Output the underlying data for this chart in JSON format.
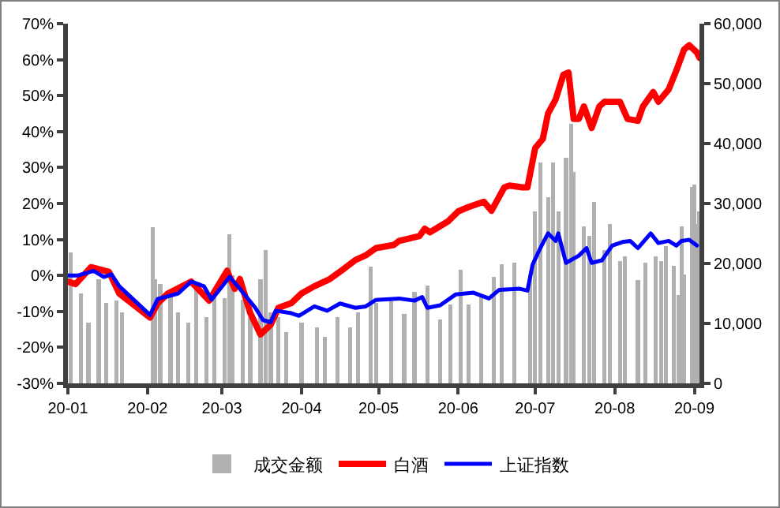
{
  "chart_data": {
    "type": "line",
    "legend": "bottom",
    "grid": false,
    "xlim": [
      "--01-01",
      "--09-03"
    ],
    "xticks": [
      {
        "value": "--01-01",
        "label": "20-01"
      },
      {
        "value": "--02-01",
        "label": "20-02"
      },
      {
        "value": "--03-01",
        "label": "20-03"
      },
      {
        "value": "--04-01",
        "label": "20-04"
      },
      {
        "value": "--05-01",
        "label": "20-05"
      },
      {
        "value": "--06-01",
        "label": "20-06"
      },
      {
        "value": "--07-01",
        "label": "20-07"
      },
      {
        "value": "--08-01",
        "label": "20-08"
      },
      {
        "value": "--09-01",
        "label": "20-09"
      }
    ],
    "ylim": [
      -30,
      70
    ],
    "yticks": [
      {
        "value": -30,
        "label": "-30%"
      },
      {
        "value": -20,
        "label": "-20%"
      },
      {
        "value": -10,
        "label": "-10%"
      },
      {
        "value": 0,
        "label": "0%"
      },
      {
        "value": 10,
        "label": "10%"
      },
      {
        "value": 20,
        "label": "20%"
      },
      {
        "value": 30,
        "label": "30%"
      },
      {
        "value": 40,
        "label": "40%"
      },
      {
        "value": 50,
        "label": "50%"
      },
      {
        "value": 60,
        "label": "60%"
      },
      {
        "value": 70,
        "label": "70%"
      }
    ],
    "y2lim": [
      0,
      60000
    ],
    "y2ticks": [
      0,
      {
        "value": 10000,
        "label": "10,000"
      },
      {
        "value": 20000,
        "label": "20,000"
      },
      {
        "value": 30000,
        "label": "30,000"
      },
      {
        "value": 40000,
        "label": "40,000"
      },
      {
        "value": 50000,
        "label": "50,000"
      },
      {
        "value": 60000,
        "label": "60,000"
      }
    ],
    "series": [
      {
        "name": "成交金额",
        "type": "bar",
        "axis": "y2",
        "color": "#b0b0b0",
        "x": [
          "--01-02",
          "--01-06",
          "--01-09",
          "--01-13",
          "--01-16",
          "--01-20",
          "--01-22",
          "--02-03",
          "--02-04",
          "--02-06",
          "--02-10",
          "--02-13",
          "--02-17",
          "--02-20",
          "--02-24",
          "--02-27",
          "--03-02",
          "--03-04",
          "--03-05",
          "--03-09",
          "--03-12",
          "--03-16",
          "--03-18",
          "--03-20",
          "--03-23",
          "--03-26",
          "--04-01",
          "--04-07",
          "--04-10",
          "--04-15",
          "--04-20",
          "--04-23",
          "--04-28",
          "--04-30",
          "--05-06",
          "--05-11",
          "--05-15",
          "--05-20",
          "--05-25",
          "--05-29",
          "--06-02",
          "--06-05",
          "--06-10",
          "--06-15",
          "--06-18",
          "--06-23",
          "--06-29",
          "--07-01",
          "--07-03",
          "--07-06",
          "--07-08",
          "--07-10",
          "--07-13",
          "--07-15",
          "--07-16",
          "--07-20",
          "--07-22",
          "--07-24",
          "--07-28",
          "--07-30",
          "--08-03",
          "--08-05",
          "--08-10",
          "--08-13",
          "--08-17",
          "--08-19",
          "--08-21",
          "--08-24",
          "--08-26",
          "--08-27",
          "--08-28",
          "--08-31",
          "--09-01",
          "--09-02",
          "--09-03"
        ],
        "values": [
          21900,
          15000,
          10100,
          17400,
          13400,
          13800,
          11800,
          26000,
          17400,
          16600,
          15000,
          11800,
          10100,
          15800,
          11000,
          15000,
          14200,
          24900,
          18000,
          14000,
          11000,
          17400,
          22300,
          11800,
          11000,
          8500,
          10100,
          9300,
          7700,
          11000,
          9300,
          11800,
          19500,
          13400,
          14000,
          11600,
          15200,
          16300,
          10700,
          13200,
          19000,
          13200,
          14400,
          17700,
          19900,
          20100,
          18100,
          28700,
          36800,
          31100,
          36800,
          28700,
          37600,
          43300,
          35200,
          26200,
          24600,
          30300,
          22300,
          26600,
          20400,
          21200,
          17300,
          20100,
          21200,
          20400,
          22900,
          19600,
          14700,
          26200,
          18100,
          32700,
          33100,
          26600,
          28700
        ]
      },
      {
        "name": "白酒",
        "color": "#ff0000",
        "x": [
          "--01-01",
          "--01-04",
          "--01-10",
          "--01-17",
          "--01-21",
          "--02-02",
          "--02-05",
          "--02-09",
          "--02-18",
          "--02-25",
          "--03-03",
          "--03-06",
          "--03-08",
          "--03-12",
          "--03-16",
          "--03-20",
          "--03-23",
          "--03-28",
          "--04-01",
          "--04-06",
          "--04-12",
          "--04-17",
          "--04-22",
          "--04-26",
          "--04-30",
          "--05-07",
          "--05-09",
          "--05-17",
          "--05-19",
          "--05-21",
          "--05-28",
          "--06-01",
          "--06-05",
          "--06-11",
          "--06-14",
          "--06-19",
          "--06-21",
          "--06-26",
          "--06-28",
          "--07-01",
          "--07-04",
          "--07-06",
          "--07-09",
          "--07-12",
          "--07-14",
          "--07-16",
          "--07-18",
          "--07-20",
          "--07-23",
          "--07-26",
          "--07-28",
          "--08-03",
          "--08-06",
          "--08-10",
          "--08-12",
          "--08-16",
          "--08-18",
          "--08-22",
          "--08-25",
          "--08-28",
          "--08-30",
          "--09-02",
          "--09-03"
        ],
        "values": [
          -1.7,
          -2.4,
          2.3,
          1,
          -5,
          -11.7,
          -7.7,
          -5,
          -1.7,
          -7,
          1.3,
          -3.7,
          -1,
          -10.4,
          -16.4,
          -13.7,
          -9,
          -7.7,
          -5,
          -3,
          -1,
          1.6,
          4.3,
          5.6,
          7.6,
          8.5,
          9.6,
          11,
          13,
          12,
          15,
          17.8,
          19,
          20.5,
          18,
          24.5,
          25,
          24.5,
          24.5,
          35.4,
          38,
          45,
          49,
          55.8,
          56.4,
          43.5,
          43.5,
          47,
          41,
          47,
          48.3,
          48.3,
          43.5,
          43,
          47,
          51,
          48.3,
          51.7,
          57,
          62.8,
          64,
          62,
          60.5
        ]
      },
      {
        "name": "上证指数",
        "color": "#0000ff",
        "x": [
          "--01-01",
          "--01-05",
          "--01-11",
          "--01-15",
          "--01-18",
          "--01-21",
          "--02-02",
          "--02-05",
          "--02-09",
          "--02-13",
          "--02-18",
          "--02-23",
          "--02-26",
          "--03-04",
          "--03-08",
          "--03-14",
          "--03-17",
          "--03-20",
          "--03-22",
          "--03-28",
          "--03-31",
          "--04-06",
          "--04-11",
          "--04-16",
          "--04-22",
          "--04-26",
          "--04-30",
          "--05-09",
          "--05-15",
          "--05-18",
          "--05-20",
          "--05-25",
          "--05-31",
          "--06-07",
          "--06-13",
          "--06-17",
          "--06-25",
          "--06-28",
          "--06-30",
          "--07-03",
          "--07-06",
          "--07-09",
          "--07-10",
          "--07-13",
          "--07-18",
          "--07-21",
          "--07-23",
          "--07-27",
          "--07-31",
          "--08-04",
          "--08-07",
          "--08-10",
          "--08-15",
          "--08-18",
          "--08-22",
          "--08-25",
          "--08-27",
          "--08-30",
          "--09-02"
        ],
        "values": [
          0,
          0,
          1.3,
          -0.4,
          0.3,
          -3,
          -11,
          -6.5,
          -5.8,
          -5,
          -1.7,
          -3,
          -6.7,
          -0.4,
          -3.7,
          -9,
          -12.4,
          -13,
          -9.8,
          -10.5,
          -11.2,
          -8.6,
          -9.8,
          -7.8,
          -9,
          -8.6,
          -6.8,
          -6.4,
          -7,
          -6,
          -9,
          -8.3,
          -5.3,
          -4.8,
          -6.4,
          -4,
          -3.7,
          -4.2,
          3,
          7.6,
          11.7,
          9.6,
          11.7,
          3.5,
          5.5,
          7.6,
          3.5,
          4.2,
          8.3,
          9.3,
          9.6,
          7.6,
          11.7,
          9,
          9.6,
          8.3,
          9.6,
          9.9,
          8.3
        ]
      }
    ]
  }
}
